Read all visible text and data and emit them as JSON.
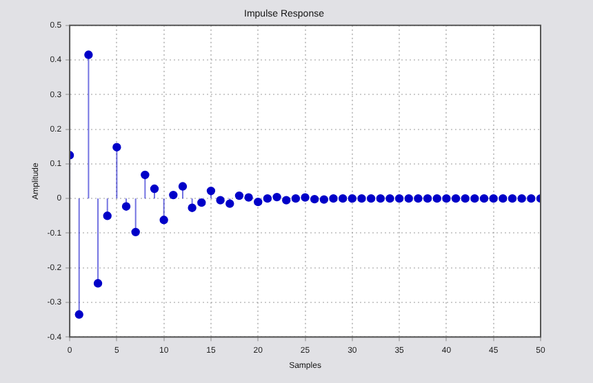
{
  "chart_data": {
    "type": "lollipop",
    "title": "Impulse Response",
    "xlabel": "Samples",
    "ylabel": "Amplitude",
    "x": [
      0,
      1,
      2,
      3,
      4,
      5,
      6,
      7,
      8,
      9,
      10,
      11,
      12,
      13,
      14,
      15,
      16,
      17,
      18,
      19,
      20,
      21,
      22,
      23,
      24,
      25,
      26,
      27,
      28,
      29,
      30,
      31,
      32,
      33,
      34,
      35,
      36,
      37,
      38,
      39,
      40,
      41,
      42,
      43,
      44,
      45,
      46,
      47,
      48,
      49,
      50
    ],
    "series": [
      {
        "color": "#0000c8",
        "values": [
          0.125,
          -0.335,
          0.415,
          -0.245,
          -0.05,
          0.148,
          -0.023,
          -0.097,
          0.068,
          0.028,
          -0.062,
          0.01,
          0.035,
          -0.027,
          -0.012,
          0.022,
          -0.005,
          -0.015,
          0.008,
          0.003,
          -0.01,
          0,
          0.004,
          -0.005,
          0,
          0.003,
          -0.002,
          -0.003,
          0,
          0,
          0,
          0,
          0,
          0,
          0,
          0,
          0,
          0,
          0,
          0,
          0,
          0,
          0,
          0,
          0,
          0,
          0,
          0,
          0,
          0,
          0
        ]
      }
    ],
    "xlim": [
      0,
      50
    ],
    "xticks": [
      0,
      5,
      10,
      15,
      20,
      25,
      30,
      35,
      40,
      45,
      50
    ],
    "ylim": [
      -0.4,
      0.5
    ],
    "yticks": [
      -0.4,
      -0.3,
      -0.2,
      -0.1,
      0,
      0.1,
      0.2,
      0.3,
      0.4,
      0.5
    ],
    "grid": true,
    "marker": "circle",
    "legend": false
  }
}
